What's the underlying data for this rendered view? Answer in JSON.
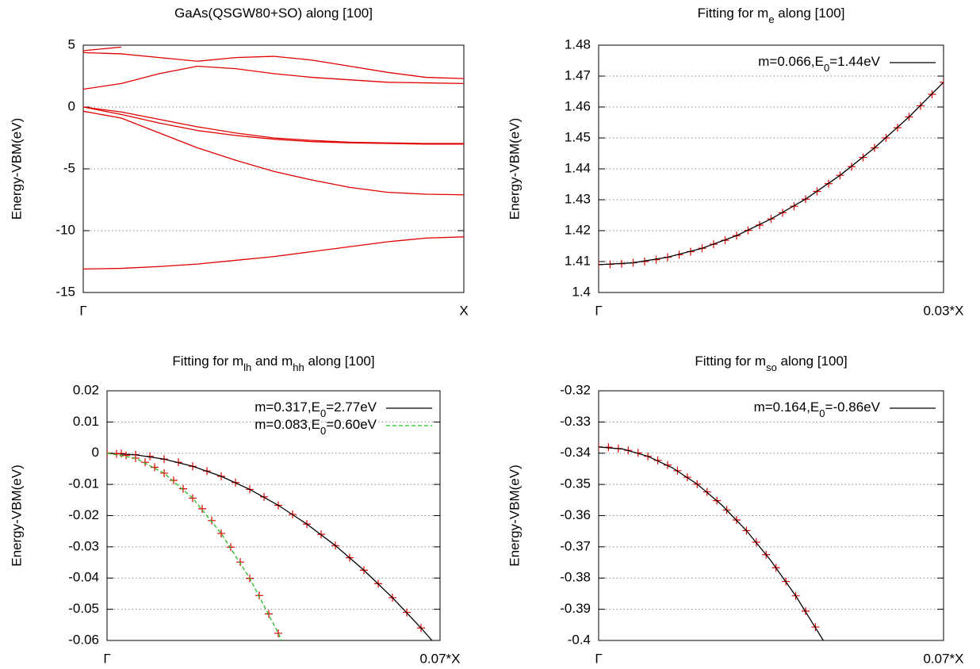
{
  "chart_data": [
    {
      "type": "line",
      "title": [
        "GaAs(QSGW80+SO) along [100]"
      ],
      "ylabel": "Energy-VBM(eV)",
      "xlim": [
        0,
        1
      ],
      "xticks": [
        {
          "value": 0,
          "label": "Γ"
        },
        {
          "value": 1,
          "label": "X"
        }
      ],
      "ylim": [
        -15,
        5
      ],
      "yticks": [
        -15,
        -10,
        -5,
        0,
        5
      ],
      "grid": true,
      "x": [
        0,
        0.1,
        0.2,
        0.3,
        0.4,
        0.5,
        0.6,
        0.7,
        0.8,
        0.9,
        1
      ],
      "series": [
        {
          "color": "#e00000",
          "style": "line",
          "values": [
            -13.1,
            -13.05,
            -12.9,
            -12.7,
            -12.4,
            -12.1,
            -11.7,
            -11.3,
            -10.9,
            -10.6,
            -10.5
          ]
        },
        {
          "color": "#e00000",
          "style": "line",
          "values": [
            -0.34,
            -0.9,
            -2.1,
            -3.3,
            -4.3,
            -5.2,
            -5.9,
            -6.5,
            -6.9,
            -7.05,
            -7.1
          ]
        },
        {
          "color": "#e00000",
          "style": "line",
          "values": [
            0,
            -0.6,
            -1.3,
            -1.9,
            -2.3,
            -2.6,
            -2.8,
            -2.9,
            -2.95,
            -3.0,
            -3.0
          ]
        },
        {
          "color": "#e00000",
          "style": "line",
          "values": [
            0,
            -0.4,
            -1.0,
            -1.6,
            -2.1,
            -2.5,
            -2.7,
            -2.85,
            -2.9,
            -2.95,
            -2.95
          ]
        },
        {
          "color": "#e00000",
          "style": "line",
          "values": [
            1.44,
            1.9,
            2.7,
            3.3,
            3.1,
            2.7,
            2.4,
            2.2,
            2.0,
            1.95,
            1.9
          ]
        },
        {
          "color": "#e00000",
          "style": "line",
          "values": [
            4.4,
            4.3,
            4.0,
            3.7,
            4.0,
            4.1,
            3.8,
            3.3,
            2.8,
            2.4,
            2.3
          ]
        },
        {
          "color": "#e00000",
          "style": "line",
          "values": [
            4.55,
            4.85,
            null,
            null,
            null,
            null,
            null,
            null,
            null,
            null,
            null
          ]
        }
      ]
    },
    {
      "type": "line",
      "title": [
        "Fitting for m",
        "e",
        " along [100]"
      ],
      "ylabel": "Energy-VBM(eV)",
      "xlim": [
        0,
        0.03
      ],
      "xticks": [
        {
          "value": 0,
          "label": "Γ"
        },
        {
          "value": 0.03,
          "label": "0.03*X"
        }
      ],
      "ylim": [
        1.4,
        1.48
      ],
      "yticks": [
        1.4,
        1.41,
        1.42,
        1.43,
        1.44,
        1.45,
        1.46,
        1.47,
        1.48
      ],
      "grid": true,
      "series": [
        {
          "color": "#e00000",
          "style": "points",
          "x": [
            0,
            0.001,
            0.002,
            0.003,
            0.004,
            0.005,
            0.006,
            0.007,
            0.008,
            0.009,
            0.01,
            0.011,
            0.012,
            0.013,
            0.014,
            0.015,
            0.016,
            0.017,
            0.018,
            0.019,
            0.02,
            0.021,
            0.022,
            0.023,
            0.024,
            0.025,
            0.026,
            0.027,
            0.028,
            0.029,
            0.03
          ],
          "values": [
            1.409,
            1.4091,
            1.4093,
            1.4096,
            1.41,
            1.4106,
            1.4114,
            1.4122,
            1.4132,
            1.4143,
            1.4156,
            1.4169,
            1.4184,
            1.4201,
            1.4218,
            1.4238,
            1.4258,
            1.4279,
            1.4302,
            1.4327,
            1.4352,
            1.4379,
            1.4407,
            1.4437,
            1.4468,
            1.45,
            1.4533,
            1.4568,
            1.4604,
            1.4641,
            1.468
          ]
        },
        {
          "name": [
            "m=0.066,E",
            "0",
            "=1.44eV"
          ],
          "color": "#000000",
          "style": "line",
          "x": [
            0,
            0.003,
            0.006,
            0.009,
            0.012,
            0.015,
            0.018,
            0.021,
            0.024,
            0.027,
            0.03
          ],
          "values": [
            1.409,
            1.4096,
            1.4114,
            1.4143,
            1.4184,
            1.4238,
            1.4302,
            1.4379,
            1.4468,
            1.4568,
            1.468
          ]
        }
      ]
    },
    {
      "type": "line",
      "title": [
        "Fitting for m",
        "lh",
        " and m",
        "hh",
        " along [100]"
      ],
      "ylabel": "Energy-VBM(eV)",
      "xlim": [
        0,
        0.07
      ],
      "xticks": [
        {
          "value": 0,
          "label": "Γ"
        },
        {
          "value": 0.07,
          "label": "0.07*X"
        }
      ],
      "ylim": [
        -0.06,
        0.02
      ],
      "yticks": [
        -0.06,
        -0.05,
        -0.04,
        -0.03,
        -0.02,
        -0.01,
        0,
        0.01,
        0.02
      ],
      "grid": true,
      "series": [
        {
          "color": "#e00000",
          "style": "points",
          "x": [
            0,
            0.003,
            0.006,
            0.009,
            0.012,
            0.015,
            0.018,
            0.021,
            0.024,
            0.027,
            0.03,
            0.033,
            0.036,
            0.039,
            0.042,
            0.045,
            0.048,
            0.051,
            0.054,
            0.057,
            0.06,
            0.063,
            0.066
          ],
          "values": [
            0,
            -0.0001,
            -0.0005,
            -0.001,
            -0.0019,
            -0.0029,
            -0.0042,
            -0.0057,
            -0.0074,
            -0.0094,
            -0.0116,
            -0.014,
            -0.0167,
            -0.0196,
            -0.0227,
            -0.026,
            -0.0296,
            -0.0335,
            -0.0375,
            -0.0418,
            -0.0463,
            -0.051,
            -0.056
          ]
        },
        {
          "name": [
            "m=0.317,E",
            "0",
            "=2.77eV"
          ],
          "color": "#000000",
          "style": "line",
          "x": [
            0,
            0.006,
            0.012,
            0.018,
            0.024,
            0.03,
            0.036,
            0.042,
            0.048,
            0.054,
            0.06,
            0.066,
            0.0683
          ],
          "values": [
            0,
            -0.0005,
            -0.0019,
            -0.0042,
            -0.0074,
            -0.0116,
            -0.0167,
            -0.0227,
            -0.0296,
            -0.0375,
            -0.0463,
            -0.056,
            -0.06
          ]
        },
        {
          "color": "#e00000",
          "style": "points",
          "x": [
            0,
            0.002,
            0.004,
            0.006,
            0.008,
            0.01,
            0.012,
            0.014,
            0.016,
            0.018,
            0.02,
            0.022,
            0.024,
            0.026,
            0.028,
            0.03,
            0.032,
            0.034,
            0.036
          ],
          "values": [
            0,
            -0.0002,
            -0.0007,
            -0.0016,
            -0.0029,
            -0.0045,
            -0.0064,
            -0.0087,
            -0.0114,
            -0.0144,
            -0.0178,
            -0.0216,
            -0.0257,
            -0.0301,
            -0.0349,
            -0.0401,
            -0.0456,
            -0.0515,
            -0.0577
          ]
        },
        {
          "name": [
            "m=0.083,E",
            "0",
            "=0.60eV"
          ],
          "color": "#22bb22",
          "style": "line",
          "dash": true,
          "x": [
            0,
            0.006,
            0.012,
            0.018,
            0.024,
            0.03,
            0.036,
            0.0367
          ],
          "values": [
            0,
            -0.0016,
            -0.0064,
            -0.0144,
            -0.0257,
            -0.0401,
            -0.0577,
            -0.06
          ]
        }
      ]
    },
    {
      "type": "line",
      "title": [
        "Fitting for m",
        "so",
        " along [100]"
      ],
      "ylabel": "Energy-VBM(eV)",
      "xlim": [
        0,
        0.07
      ],
      "xticks": [
        {
          "value": 0,
          "label": "Γ"
        },
        {
          "value": 0.07,
          "label": "0.07*X"
        }
      ],
      "ylim": [
        -0.4,
        -0.32
      ],
      "yticks": [
        -0.4,
        -0.39,
        -0.38,
        -0.37,
        -0.36,
        -0.35,
        -0.34,
        -0.33,
        -0.32
      ],
      "grid": true,
      "series": [
        {
          "color": "#e00000",
          "style": "points",
          "x": [
            0,
            0.002,
            0.004,
            0.006,
            0.008,
            0.01,
            0.012,
            0.014,
            0.016,
            0.018,
            0.02,
            0.022,
            0.024,
            0.026,
            0.028,
            0.03,
            0.032,
            0.034,
            0.036,
            0.038,
            0.04,
            0.042,
            0.044
          ],
          "values": [
            -0.338,
            -0.3381,
            -0.3385,
            -0.3391,
            -0.3399,
            -0.341,
            -0.3423,
            -0.3438,
            -0.3456,
            -0.3477,
            -0.3499,
            -0.3524,
            -0.3552,
            -0.3582,
            -0.3614,
            -0.3648,
            -0.3685,
            -0.3725,
            -0.3767,
            -0.3811,
            -0.3857,
            -0.3906,
            -0.3957
          ]
        },
        {
          "name": [
            "m=0.164,E",
            "0",
            "=-0.86eV"
          ],
          "color": "#000000",
          "style": "line",
          "x": [
            0,
            0.005,
            0.01,
            0.015,
            0.02,
            0.025,
            0.03,
            0.035,
            0.04,
            0.0456
          ],
          "values": [
            -0.338,
            -0.3387,
            -0.341,
            -0.3447,
            -0.3499,
            -0.3566,
            -0.3648,
            -0.3745,
            -0.3857,
            -0.4
          ]
        }
      ]
    }
  ]
}
